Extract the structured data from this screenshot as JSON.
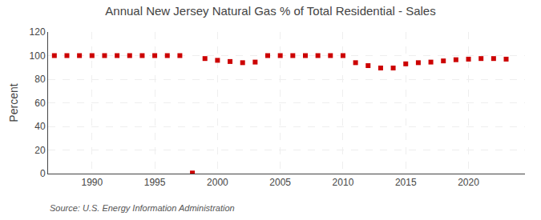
{
  "chart_data": {
    "type": "scatter",
    "title": "Annual New Jersey Natural Gas % of Total Residential - Sales",
    "ylabel": "Percent",
    "annotations": [
      "Source: U.S. Energy Information Administration"
    ],
    "x": [
      1987,
      1988,
      1989,
      1990,
      1991,
      1992,
      1993,
      1994,
      1995,
      1996,
      1997,
      1998,
      1999,
      2000,
      2001,
      2002,
      2003,
      2004,
      2005,
      2006,
      2007,
      2008,
      2009,
      2010,
      2011,
      2012,
      2013,
      2014,
      2015,
      2016,
      2017,
      2018,
      2019,
      2020,
      2021,
      2022,
      2023
    ],
    "values": [
      100.0,
      100.0,
      100.0,
      100.0,
      100.0,
      100.0,
      100.0,
      100.0,
      100.0,
      100.0,
      100.0,
      0.5,
      97.5,
      96.0,
      95.0,
      94.0,
      94.5,
      100.0,
      100.0,
      100.0,
      100.0,
      100.0,
      100.0,
      100.0,
      94.0,
      91.5,
      89.5,
      89.5,
      93.0,
      94.0,
      94.5,
      95.5,
      96.5,
      97.0,
      97.5,
      97.5,
      97.0
    ],
    "color": "#cc0000",
    "marker": "square",
    "xlim": [
      1986.5,
      2024.5
    ],
    "ylim": [
      0,
      120
    ],
    "xticks": [
      1990,
      1995,
      2000,
      2005,
      2010,
      2015,
      2020
    ],
    "yticks": [
      0,
      20,
      40,
      60,
      80,
      100,
      120
    ],
    "grid": true
  }
}
